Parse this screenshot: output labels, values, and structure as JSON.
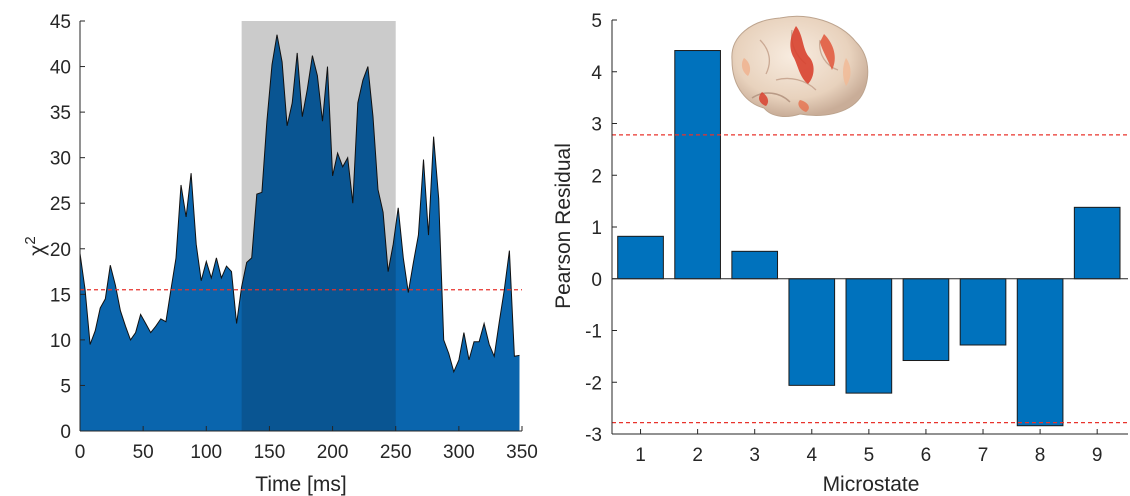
{
  "chart_data": [
    {
      "type": "area",
      "xlabel": "Time [ms]",
      "ylabel_main": "χ",
      "ylabel_sup": "2",
      "xlim": [
        0,
        350
      ],
      "ylim": [
        0,
        45
      ],
      "xticks": [
        0,
        50,
        100,
        150,
        200,
        250,
        300,
        350
      ],
      "yticks": [
        0,
        5,
        10,
        15,
        20,
        25,
        30,
        35,
        40,
        45
      ],
      "threshold": 15.5,
      "highlight_range": [
        128,
        250
      ],
      "colors": {
        "area": "#0a65ad",
        "area_highlight": "#095592",
        "shade": "#cbcbcb",
        "threshold": "#e8332c"
      },
      "grid": false,
      "x": [
        0,
        4,
        8,
        12,
        16,
        20,
        24,
        28,
        32,
        36,
        40,
        44,
        48,
        52,
        56,
        60,
        64,
        68,
        72,
        76,
        80,
        84,
        88,
        92,
        96,
        100,
        104,
        108,
        112,
        116,
        120,
        124,
        128,
        132,
        136,
        140,
        144,
        148,
        152,
        156,
        160,
        164,
        168,
        172,
        176,
        180,
        184,
        188,
        192,
        196,
        200,
        204,
        208,
        212,
        216,
        220,
        224,
        228,
        232,
        236,
        240,
        244,
        248,
        252,
        256,
        260,
        264,
        268,
        272,
        276,
        280,
        284,
        288,
        292,
        296,
        300,
        304,
        308,
        312,
        316,
        320,
        324,
        328,
        332,
        336,
        340,
        344,
        348
      ],
      "y": [
        19.5,
        15.5,
        9.5,
        11,
        13.5,
        14.5,
        18.2,
        16,
        13.2,
        11.5,
        10,
        10.8,
        12.8,
        11.8,
        10.8,
        11.5,
        12.3,
        12,
        15.5,
        19,
        27,
        23.5,
        28.3,
        20.5,
        16.5,
        18.6,
        16.8,
        19,
        16.8,
        18.1,
        17.5,
        11.8,
        15.8,
        18.5,
        19,
        26,
        26.2,
        34,
        40.2,
        43.5,
        40.5,
        33.5,
        36,
        41.5,
        34.5,
        37.5,
        41.2,
        39,
        34,
        40,
        28,
        30.5,
        29,
        30,
        25,
        36,
        38.5,
        40,
        34.5,
        26.5,
        24,
        17.5,
        20.5,
        24.5,
        19,
        15.2,
        18.5,
        21.5,
        29.8,
        21.5,
        32.3,
        25.5,
        10,
        8.5,
        6.5,
        7.8,
        10.8,
        7.8,
        9.8,
        9.8,
        11.8,
        9.5,
        8.2,
        12,
        15.5,
        19.8,
        8.2,
        8.3
      ]
    },
    {
      "type": "bar",
      "xlabel": "Microstate",
      "ylabel": "Pearson Residual",
      "categories": [
        "1",
        "2",
        "3",
        "4",
        "5",
        "6",
        "7",
        "8",
        "9"
      ],
      "values": [
        0.82,
        4.41,
        0.53,
        -2.06,
        -2.21,
        -1.58,
        -1.28,
        -2.84,
        1.38
      ],
      "ylim": [
        -3,
        5
      ],
      "yticks": [
        -3,
        -2,
        -1,
        0,
        1,
        2,
        3,
        4,
        5
      ],
      "thresholds": [
        2.78,
        -2.78
      ],
      "colors": {
        "bar": "#0072bd",
        "threshold": "#e8332c"
      },
      "grid": false,
      "inset_image": "brain-surface-rendering"
    }
  ]
}
